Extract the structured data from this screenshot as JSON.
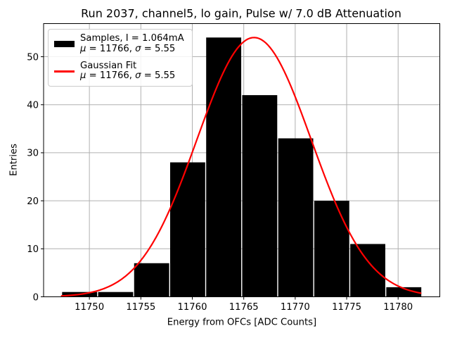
{
  "chart_data": {
    "type": "bar",
    "subtype": "histogram",
    "title": "Run 2037, channel5, lo gain, Pulse w/ 7.0 dB Attenuation",
    "xlabel": "Energy from OFCs [ADC Counts]",
    "ylabel": "Entries",
    "bar_color": "#000000",
    "grid": true,
    "grid_color": "#b0b0b0",
    "axis_color": "#000000",
    "xlim": [
      11745.55,
      11784.05
    ],
    "ylim": [
      0,
      56.9
    ],
    "xticks": [
      11750,
      11755,
      11760,
      11765,
      11770,
      11775,
      11780
    ],
    "yticks": [
      0,
      10,
      20,
      30,
      40,
      50
    ],
    "bin_edges": [
      11747.3,
      11750.8,
      11754.3,
      11757.8,
      11761.3,
      11764.8,
      11768.3,
      11771.8,
      11775.3,
      11778.8,
      11782.3
    ],
    "counts": [
      1,
      1,
      7,
      28,
      54,
      42,
      33,
      20,
      11,
      2
    ],
    "fit": {
      "type": "gaussian",
      "mu": 11766,
      "sigma": 5.55,
      "peak": 54,
      "x_start": 11747.3,
      "x_end": 11782.2,
      "color": "#ff0000"
    },
    "legend": {
      "position": "upper-left",
      "entries": [
        {
          "swatch": "thick-black-bar",
          "color": "#000000",
          "label": "Samples, I = 1.064mA",
          "stats": "μ = 11766, σ = 5.55"
        },
        {
          "swatch": "red-line",
          "color": "#ff0000",
          "label": "Gaussian Fit",
          "stats": "μ = 11766, σ = 5.55"
        }
      ]
    }
  }
}
